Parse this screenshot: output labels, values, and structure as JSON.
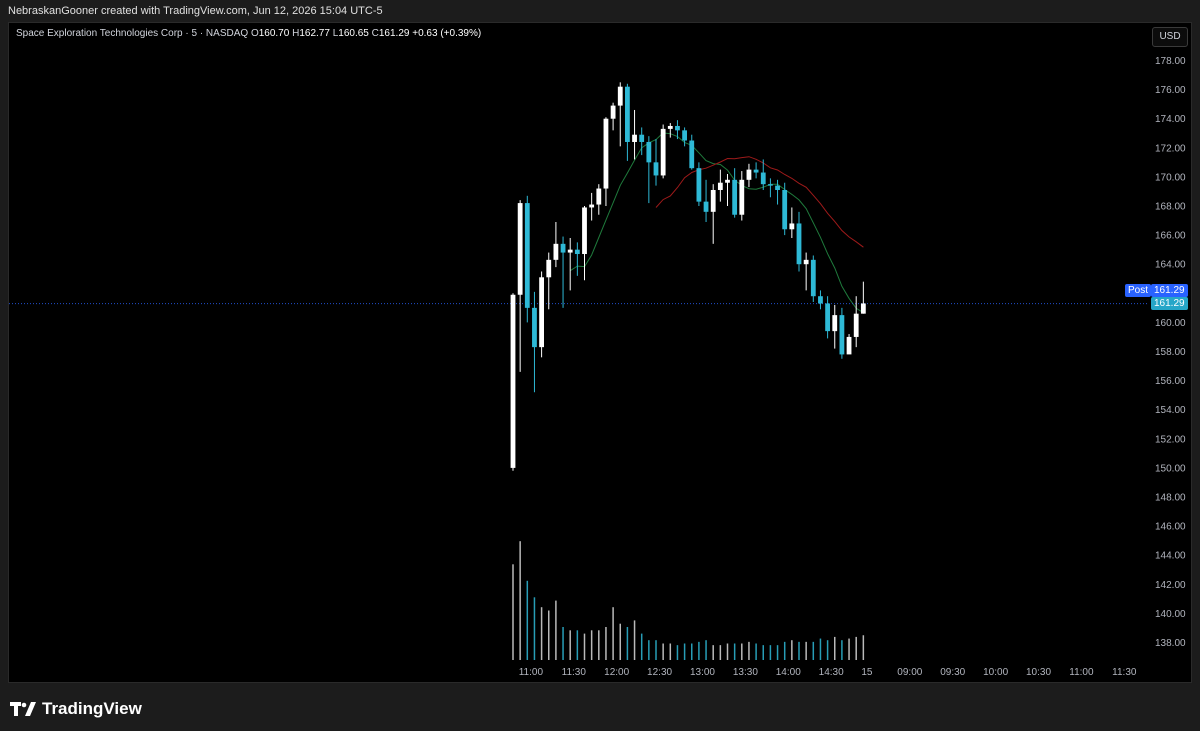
{
  "header": {
    "credit": "NebraskanGooner created with TradingView.com, Jun 12, 2026 15:04 UTC-5"
  },
  "legend": {
    "symbol": "Space Exploration Technologies Corp · 5 · NASDAQ",
    "o_label": "O",
    "o_value": "160.70",
    "h_label": "H",
    "h_value": "162.77",
    "l_label": "L",
    "l_value": "160.65",
    "c_label": "C",
    "c_value": "161.29",
    "change": "+0.63 (+0.39%)"
  },
  "price_scale": {
    "currency": "USD",
    "post_label": "Post",
    "post_price": "161.29",
    "last_price": "161.29"
  },
  "footer": {
    "brand": "TradingView"
  },
  "colors": {
    "background": "#000000",
    "up_candle": "#ffffff",
    "down_candle": "#2eb9d6",
    "fast_ma": "#1f7a3c",
    "slow_ma": "#9e1a1a",
    "post_tag": "#2962ff",
    "last_tag": "#26a6c8"
  },
  "chart_data": {
    "type": "candlestick",
    "interval": "5",
    "y_ticks": [
      "178.00",
      "176.00",
      "174.00",
      "172.00",
      "170.00",
      "168.00",
      "166.00",
      "164.00",
      "162.00",
      "160.00",
      "158.00",
      "156.00",
      "154.00",
      "152.00",
      "150.00",
      "148.00",
      "146.00",
      "144.00",
      "142.00",
      "140.00",
      "138.00"
    ],
    "ylim": [
      137,
      179
    ],
    "x_ticks": [
      "11:00",
      "11:30",
      "12:00",
      "12:30",
      "13:00",
      "13:30",
      "14:00",
      "14:30",
      "15",
      "09:00",
      "09:30",
      "10:00",
      "10:30",
      "11:00",
      "11:30"
    ],
    "x_tick_slots": [
      2.5,
      8.5,
      14.5,
      20.5,
      26.5,
      32.5,
      38.5,
      44.5,
      49.5,
      55.5,
      61.5,
      67.5,
      73.5,
      79.5,
      85.5
    ],
    "last_price": 161.29,
    "candles": [
      {
        "o": 150.0,
        "h": 162.0,
        "l": 149.8,
        "c": 161.9
      },
      {
        "o": 161.9,
        "h": 168.4,
        "l": 156.6,
        "c": 168.2
      },
      {
        "o": 168.2,
        "h": 168.7,
        "l": 160.0,
        "c": 161.0
      },
      {
        "o": 161.0,
        "h": 162.1,
        "l": 155.2,
        "c": 158.3
      },
      {
        "o": 158.3,
        "h": 163.5,
        "l": 157.6,
        "c": 163.1
      },
      {
        "o": 163.1,
        "h": 164.8,
        "l": 160.9,
        "c": 164.3
      },
      {
        "o": 164.3,
        "h": 166.9,
        "l": 163.8,
        "c": 165.4
      },
      {
        "o": 165.4,
        "h": 165.9,
        "l": 161.0,
        "c": 164.8
      },
      {
        "o": 164.8,
        "h": 165.8,
        "l": 162.2,
        "c": 165.0
      },
      {
        "o": 165.0,
        "h": 165.5,
        "l": 163.2,
        "c": 164.7
      },
      {
        "o": 164.7,
        "h": 168.0,
        "l": 162.9,
        "c": 167.9
      },
      {
        "o": 167.9,
        "h": 168.9,
        "l": 167.0,
        "c": 168.1
      },
      {
        "o": 168.1,
        "h": 169.5,
        "l": 167.4,
        "c": 169.2
      },
      {
        "o": 169.2,
        "h": 174.1,
        "l": 168.0,
        "c": 174.0
      },
      {
        "o": 174.0,
        "h": 175.1,
        "l": 173.2,
        "c": 174.9
      },
      {
        "o": 174.9,
        "h": 176.5,
        "l": 172.1,
        "c": 176.2
      },
      {
        "o": 176.2,
        "h": 176.4,
        "l": 171.1,
        "c": 172.4
      },
      {
        "o": 172.4,
        "h": 174.6,
        "l": 171.2,
        "c": 172.9
      },
      {
        "o": 172.9,
        "h": 173.4,
        "l": 171.5,
        "c": 172.4
      },
      {
        "o": 172.4,
        "h": 172.8,
        "l": 168.2,
        "c": 171.0
      },
      {
        "o": 171.0,
        "h": 172.6,
        "l": 169.4,
        "c": 170.1
      },
      {
        "o": 170.1,
        "h": 173.6,
        "l": 169.9,
        "c": 173.3
      },
      {
        "o": 173.3,
        "h": 173.7,
        "l": 172.7,
        "c": 173.5
      },
      {
        "o": 173.5,
        "h": 173.9,
        "l": 172.6,
        "c": 173.2
      },
      {
        "o": 173.2,
        "h": 173.4,
        "l": 172.1,
        "c": 172.5
      },
      {
        "o": 172.5,
        "h": 172.9,
        "l": 170.5,
        "c": 170.6
      },
      {
        "o": 170.6,
        "h": 171.0,
        "l": 168.0,
        "c": 168.3
      },
      {
        "o": 168.3,
        "h": 169.8,
        "l": 166.9,
        "c": 167.6
      },
      {
        "o": 167.6,
        "h": 169.5,
        "l": 165.4,
        "c": 169.1
      },
      {
        "o": 169.1,
        "h": 170.5,
        "l": 168.3,
        "c": 169.6
      },
      {
        "o": 169.6,
        "h": 170.2,
        "l": 168.0,
        "c": 169.8
      },
      {
        "o": 169.8,
        "h": 170.6,
        "l": 167.2,
        "c": 167.4
      },
      {
        "o": 167.4,
        "h": 170.4,
        "l": 167.0,
        "c": 169.8
      },
      {
        "o": 169.8,
        "h": 170.9,
        "l": 169.3,
        "c": 170.5
      },
      {
        "o": 170.5,
        "h": 171.0,
        "l": 169.9,
        "c": 170.3
      },
      {
        "o": 170.3,
        "h": 171.2,
        "l": 169.1,
        "c": 169.5
      },
      {
        "o": 169.5,
        "h": 169.9,
        "l": 168.6,
        "c": 169.4
      },
      {
        "o": 169.4,
        "h": 169.8,
        "l": 168.1,
        "c": 169.1
      },
      {
        "o": 169.1,
        "h": 169.6,
        "l": 166.0,
        "c": 166.4
      },
      {
        "o": 166.4,
        "h": 167.9,
        "l": 165.8,
        "c": 166.8
      },
      {
        "o": 166.8,
        "h": 167.6,
        "l": 163.5,
        "c": 164.0
      },
      {
        "o": 164.0,
        "h": 164.8,
        "l": 162.2,
        "c": 164.3
      },
      {
        "o": 164.3,
        "h": 164.6,
        "l": 161.4,
        "c": 161.8
      },
      {
        "o": 161.8,
        "h": 162.2,
        "l": 160.9,
        "c": 161.3
      },
      {
        "o": 161.3,
        "h": 161.8,
        "l": 158.9,
        "c": 159.4
      },
      {
        "o": 159.4,
        "h": 161.2,
        "l": 158.2,
        "c": 160.5
      },
      {
        "o": 160.5,
        "h": 161.0,
        "l": 157.5,
        "c": 157.8
      },
      {
        "o": 157.8,
        "h": 159.2,
        "l": 157.9,
        "c": 159.0
      },
      {
        "o": 159.0,
        "h": 161.8,
        "l": 158.3,
        "c": 160.6
      },
      {
        "o": 160.6,
        "h": 162.8,
        "l": 160.6,
        "c": 161.3
      }
    ],
    "volumes": [
      0.58,
      0.72,
      0.48,
      0.38,
      0.32,
      0.3,
      0.36,
      0.2,
      0.18,
      0.18,
      0.16,
      0.18,
      0.18,
      0.2,
      0.32,
      0.22,
      0.2,
      0.24,
      0.16,
      0.12,
      0.12,
      0.1,
      0.1,
      0.09,
      0.1,
      0.1,
      0.11,
      0.12,
      0.09,
      0.09,
      0.1,
      0.1,
      0.1,
      0.11,
      0.1,
      0.09,
      0.09,
      0.09,
      0.11,
      0.12,
      0.11,
      0.11,
      0.11,
      0.13,
      0.12,
      0.14,
      0.12,
      0.13,
      0.14,
      0.15
    ]
  }
}
